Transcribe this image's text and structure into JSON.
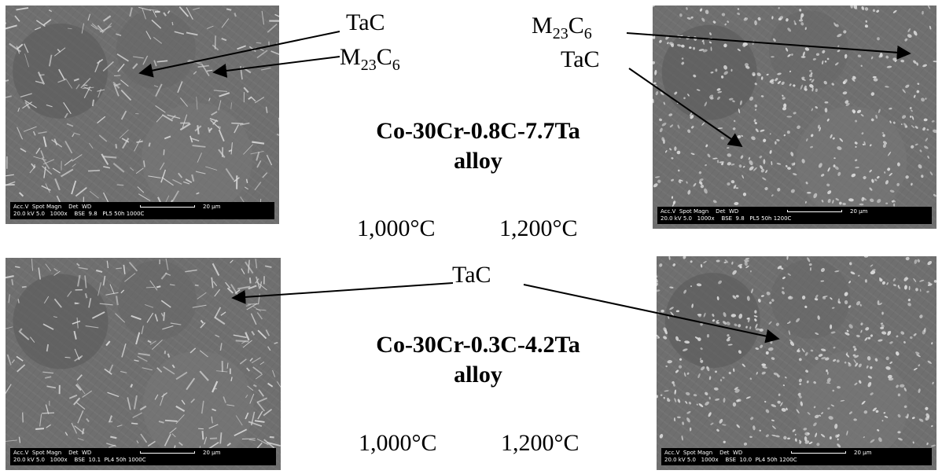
{
  "labels": {
    "tac_top_left": "TaC",
    "m23c6_top_left": {
      "base": "M",
      "sub1": "23",
      "mid": "C",
      "sub2": "6"
    },
    "m23c6_top_right": {
      "base": "M",
      "sub1": "23",
      "mid": "C",
      "sub2": "6"
    },
    "tac_top_right": "TaC",
    "tac_bottom": "TaC"
  },
  "alloy1": {
    "name": "Co-30Cr-0.8C-7.7Ta",
    "word": "alloy",
    "temp1": "1,000°C",
    "temp2": "1,200°C"
  },
  "alloy2": {
    "name": "Co-30Cr-0.3C-4.2Ta",
    "word": "alloy",
    "temp1": "1,000°C",
    "temp2": "1,200°C"
  },
  "images": {
    "tl": {
      "row1": "Acc.V  Spot Magn    Det  WD",
      "row2": "20.0 kV 5.0   1000x    BSE  9.8   PL5 50h 1000C",
      "scale": "20 µm"
    },
    "tr": {
      "row1": "Acc.V  Spot Magn    Det  WD",
      "row2": "20.0 kV 5.0   1000x    BSE  9.8   PL5 50h 1200C",
      "scale": "20 µm"
    },
    "bl": {
      "row1": "Acc.V  Spot Magn    Det  WD",
      "row2": "20.0 kV 5.0   1000x    BSE  10.1  PL4 50h 1000C",
      "scale": "20 µm"
    },
    "br": {
      "row1": "Acc.V  Spot Magn    Det  WD",
      "row2": "20.0 kV 5.0   1000x    BSE  10.0  PL4 50h 1200C",
      "scale": "20 µm"
    }
  }
}
